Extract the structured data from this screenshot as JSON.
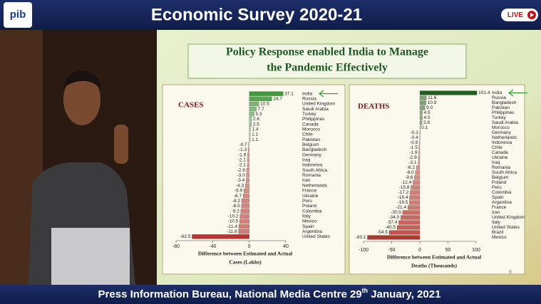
{
  "header": {
    "title": "Economic Survey 2020-21",
    "logo": "pib",
    "live": "LIVE"
  },
  "slide": {
    "title": [
      "Policy Response enabled India to Manage",
      "the Pandemic Effectively"
    ],
    "page": "6"
  },
  "footer": {
    "text": "Press Information Bureau, National Media Centre  29",
    "sup": "th",
    "rest": " January, 2021"
  },
  "chart_data": [
    {
      "type": "hbar",
      "title": "CASES",
      "xlabel": [
        "Difference between Estimated and Actual",
        "Cases (Lakhs)"
      ],
      "categories": [
        "India",
        "Russia",
        "United Kingdom",
        "Saudi Arabia",
        "Turkey",
        "Philippines",
        "Canada",
        "Morocco",
        "Chile",
        "Pakistan",
        "Belgium",
        "Bangladesh",
        "Germany",
        "Iraq",
        "Indonesia",
        "South Africa",
        "Romania",
        "Iran",
        "Netherlands",
        "France",
        "Ukraine",
        "Peru",
        "Poland",
        "Colombia",
        "Italy",
        "Mexico",
        "Spain",
        "Argentina",
        "United States"
      ],
      "values": [
        37.1,
        24.7,
        10.5,
        7.7,
        5.3,
        2.6,
        2.5,
        1.4,
        1.1,
        1.1,
        -0.7,
        -1.3,
        -1.9,
        -2.1,
        -2.1,
        -2.9,
        -3.0,
        -3.4,
        -4.3,
        -5.9,
        -6.7,
        -8.2,
        -8.5,
        -9.2,
        -10.2,
        -10.5,
        -11.4,
        -11.8,
        -62.5
      ],
      "value_labels": [
        "37.1",
        "24.7",
        "10.5",
        "7.7",
        "5.3",
        "2.6",
        "2.5",
        "1.4",
        "1.1",
        "1.1",
        "-0.7",
        "-1.3",
        "-1.9",
        "-2.1",
        "-2.1",
        "-2.9",
        "-3.0",
        "-3.4",
        "-4.3",
        "-5.9",
        "-6.7",
        "-8.2",
        "-8.5",
        "-9.2",
        "-10.2",
        "-10.5",
        "-11.4",
        "-11.8",
        "-62.5"
      ],
      "positive_color": "#3f9a3a",
      "negative_color": "#b8352e",
      "xlim": [
        -80,
        40
      ],
      "xticks": [
        -80,
        -40,
        0,
        40
      ]
    },
    {
      "type": "hbar",
      "title": "DEATHS",
      "xlabel": [
        "Difference between Estimated  and Actual",
        "Deaths (Thousands)"
      ],
      "categories": [
        "India",
        "Russia",
        "Bangladesh",
        "Pakistan",
        "Philippines",
        "Turkey",
        "Saudi Arabia",
        "Morocco",
        "Germany",
        "Netherlands",
        "Indonesia",
        "Chile",
        "Canada",
        "Ukraine",
        "Iraq",
        "Romania",
        "South Africa",
        "Belgium",
        "Poland",
        "Peru",
        "Colombia",
        "Spain",
        "Argentina",
        "France",
        "Iran",
        "United Kingdom",
        "Italy",
        "United States",
        "Brazil",
        "Mexico"
      ],
      "values": [
        101.4,
        11.6,
        10.9,
        9.0,
        4.5,
        4.5,
        3.8,
        0.1,
        -0.1,
        -0.4,
        -0.9,
        -1.5,
        -1.9,
        -2.9,
        -3.1,
        -6.2,
        -8.0,
        -9.6,
        -12.4,
        -15.8,
        -17.2,
        -18.4,
        -18.5,
        -21.4,
        -30.5,
        -34.0,
        -37.4,
        -40.5,
        -54.5,
        -93.1
      ],
      "value_labels": [
        "101.4",
        "11.6",
        "10.9",
        "9.0",
        "4.5",
        "4.5",
        "3.8",
        "0.1",
        "-0.1",
        "-0.4",
        "-0.9",
        "-1.5",
        "-1.9",
        "-2.9",
        "-3.1",
        "-6.2",
        "-8.0",
        "-9.6",
        "-12.4",
        "-15.8",
        "-17.2",
        "-18.4",
        "-18.5",
        "-21.4",
        "-30.5",
        "-34.0",
        "-37.4",
        "-40.5",
        "-54.5",
        "-93.1"
      ],
      "positive_color": "#1f5e1c",
      "negative_color": "#b8352e",
      "xlim": [
        -100,
        100
      ],
      "xticks": [
        -100,
        -50,
        0,
        50,
        100
      ]
    }
  ]
}
